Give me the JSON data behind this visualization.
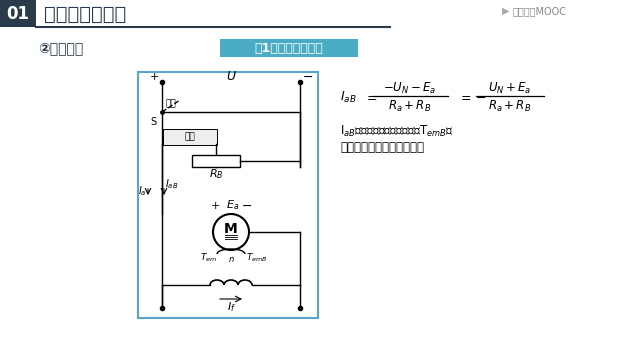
{
  "title_number": "01",
  "title_text": "他励直流电动机",
  "subtitle1": "②反接制动",
  "subtitle2": "（1）电压反接制动",
  "desc_line1": "I$_{aB}$产生很大的反向电磁转矩T$_{emB}$，",
  "desc_line2": "从而产生很强的制动作用。",
  "mooc_text": "中国大学MOOC",
  "header_dark": "#2b3a4a",
  "header_line": "#2b3a4a",
  "subtitle2_bg": "#4bacc6",
  "circuit_border": "#5ba3c9",
  "white": "#ffffff",
  "black": "#000000",
  "gray_label": "#888888"
}
